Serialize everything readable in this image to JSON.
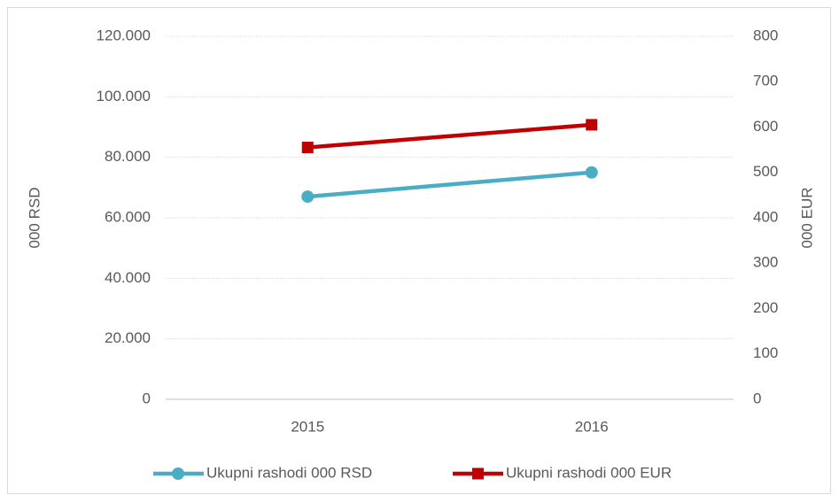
{
  "chart_data": {
    "type": "line",
    "categories": [
      "2015",
      "2016"
    ],
    "series": [
      {
        "name": "Ukupni rashodi 000 RSD",
        "color": "#4bacc6",
        "marker": "circle",
        "values": [
          67000,
          75000
        ]
      },
      {
        "name": "Ukupni rashodi 000 EUR",
        "color": "#c00000",
        "marker": "square",
        "axis": "y2",
        "values": [
          555,
          605
        ]
      }
    ],
    "ylabel": "000 RSD",
    "y2label": "000 EUR",
    "ylim": [
      0,
      120000
    ],
    "yticks": [
      0,
      {
        "value": 20000,
        "label": "20.000"
      },
      {
        "value": 40000,
        "label": "40.000"
      },
      {
        "value": 60000,
        "label": "60.000"
      },
      {
        "value": 80000,
        "label": "80.000"
      },
      {
        "value": 100000,
        "label": "100.000"
      },
      {
        "value": 120000,
        "label": "120.000"
      }
    ],
    "y2lim": [
      0,
      800
    ],
    "y2ticks": [
      0,
      100,
      200,
      300,
      400,
      500,
      600,
      700,
      800
    ],
    "grid": true,
    "legend": "bottom"
  }
}
